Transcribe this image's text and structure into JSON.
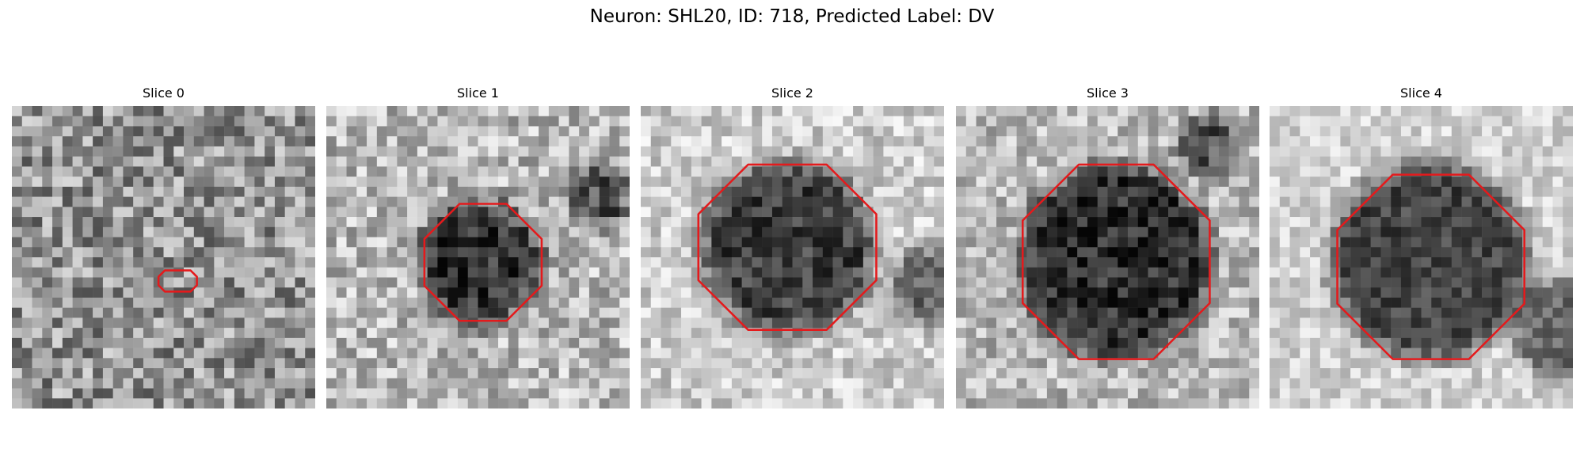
{
  "title": "Neuron: SHL20, ID: 718, Predicted Label: DV",
  "panels": [
    {
      "title": "Slice 0"
    },
    {
      "title": "Slice 1"
    },
    {
      "title": "Slice 2"
    },
    {
      "title": "Slice 3"
    },
    {
      "title": "Slice 4"
    }
  ]
}
